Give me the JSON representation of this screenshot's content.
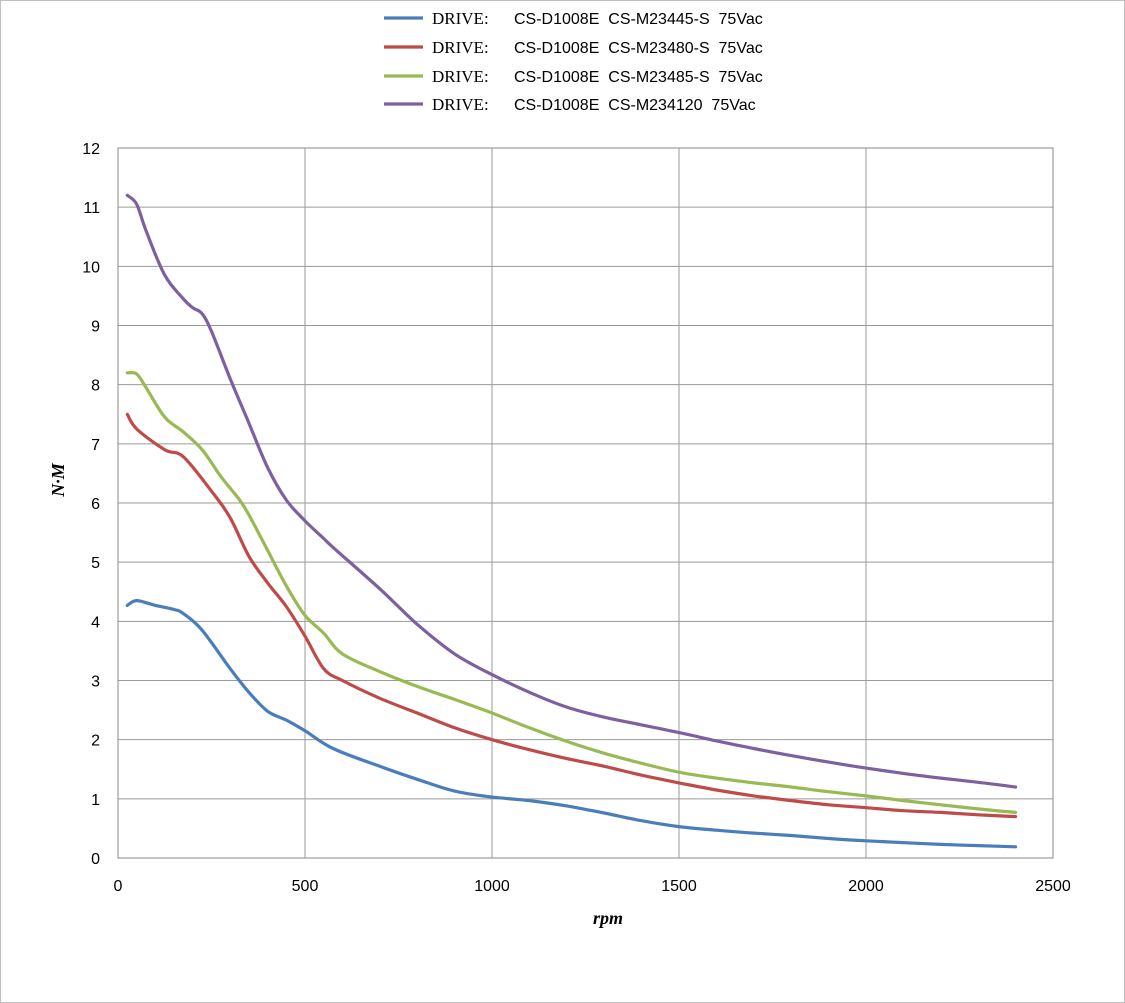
{
  "chart_data": {
    "type": "line",
    "xlabel": "rpm",
    "ylabel": "N·M",
    "xlim": [
      0,
      2500
    ],
    "ylim": [
      0,
      12
    ],
    "x_ticks": [
      0,
      500,
      1000,
      1500,
      2000,
      2500
    ],
    "y_ticks": [
      0,
      1,
      2,
      3,
      4,
      5,
      6,
      7,
      8,
      9,
      10,
      11,
      12
    ],
    "grid": true,
    "legend_position": "top",
    "series": [
      {
        "name": "CS-D1008E  CS-M23445-S  75Vac",
        "legend_prefix": "DRIVE:",
        "color": "#4a7ebb",
        "x": [
          25,
          50,
          100,
          150,
          175,
          225,
          300,
          350,
          400,
          450,
          500,
          575,
          700,
          800,
          900,
          1000,
          1100,
          1200,
          1300,
          1400,
          1500,
          1600,
          1700,
          1800,
          1900,
          2000,
          2100,
          2200,
          2300,
          2400
        ],
        "y": [
          4.27,
          4.35,
          4.27,
          4.2,
          4.13,
          3.85,
          3.2,
          2.8,
          2.48,
          2.33,
          2.15,
          1.85,
          1.55,
          1.33,
          1.13,
          1.03,
          0.97,
          0.88,
          0.76,
          0.63,
          0.53,
          0.47,
          0.42,
          0.38,
          0.33,
          0.29,
          0.26,
          0.23,
          0.21,
          0.19
        ]
      },
      {
        "name": "CS-D1008E  CS-M23480-S  75Vac",
        "legend_prefix": "DRIVE:",
        "color": "#be4b48",
        "x": [
          25,
          50,
          125,
          175,
          250,
          300,
          350,
          400,
          450,
          500,
          550,
          600,
          700,
          800,
          900,
          1000,
          1100,
          1200,
          1300,
          1400,
          1500,
          1600,
          1700,
          1800,
          1900,
          2000,
          2100,
          2200,
          2300,
          2400
        ],
        "y": [
          7.5,
          7.25,
          6.9,
          6.78,
          6.2,
          5.75,
          5.1,
          4.65,
          4.25,
          3.75,
          3.2,
          3.0,
          2.7,
          2.45,
          2.2,
          2.0,
          1.83,
          1.68,
          1.55,
          1.4,
          1.27,
          1.15,
          1.05,
          0.97,
          0.9,
          0.85,
          0.8,
          0.77,
          0.73,
          0.7
        ]
      },
      {
        "name": "CS-D1008E  CS-M23485-S  75Vac",
        "legend_prefix": "DRIVE:",
        "color": "#98b954",
        "x": [
          25,
          50,
          75,
          125,
          175,
          225,
          275,
          325,
          350,
          400,
          450,
          500,
          550,
          600,
          700,
          800,
          900,
          1000,
          1100,
          1200,
          1300,
          1400,
          1500,
          1600,
          1700,
          1800,
          1900,
          2000,
          2100,
          2200,
          2300,
          2400
        ],
        "y": [
          8.2,
          8.18,
          7.95,
          7.45,
          7.2,
          6.9,
          6.45,
          6.05,
          5.8,
          5.2,
          4.6,
          4.1,
          3.8,
          3.45,
          3.15,
          2.9,
          2.68,
          2.45,
          2.2,
          1.97,
          1.77,
          1.6,
          1.45,
          1.35,
          1.27,
          1.2,
          1.12,
          1.05,
          0.97,
          0.9,
          0.83,
          0.77
        ]
      },
      {
        "name": "CS-D1008E  CS-M234120  75Vac",
        "legend_prefix": "DRIVE:",
        "color": "#7d60a0",
        "x": [
          25,
          50,
          75,
          125,
          175,
          200,
          225,
          250,
          300,
          350,
          400,
          450,
          500,
          550,
          575,
          700,
          800,
          900,
          1000,
          1100,
          1200,
          1300,
          1400,
          1500,
          1600,
          1700,
          1800,
          1900,
          2000,
          2100,
          2200,
          2300,
          2400
        ],
        "y": [
          11.2,
          11.05,
          10.6,
          9.85,
          9.45,
          9.3,
          9.2,
          8.9,
          8.1,
          7.35,
          6.6,
          6.05,
          5.7,
          5.4,
          5.25,
          4.55,
          3.95,
          3.45,
          3.1,
          2.8,
          2.55,
          2.38,
          2.25,
          2.12,
          1.98,
          1.85,
          1.73,
          1.62,
          1.52,
          1.43,
          1.35,
          1.28,
          1.2
        ]
      }
    ]
  }
}
